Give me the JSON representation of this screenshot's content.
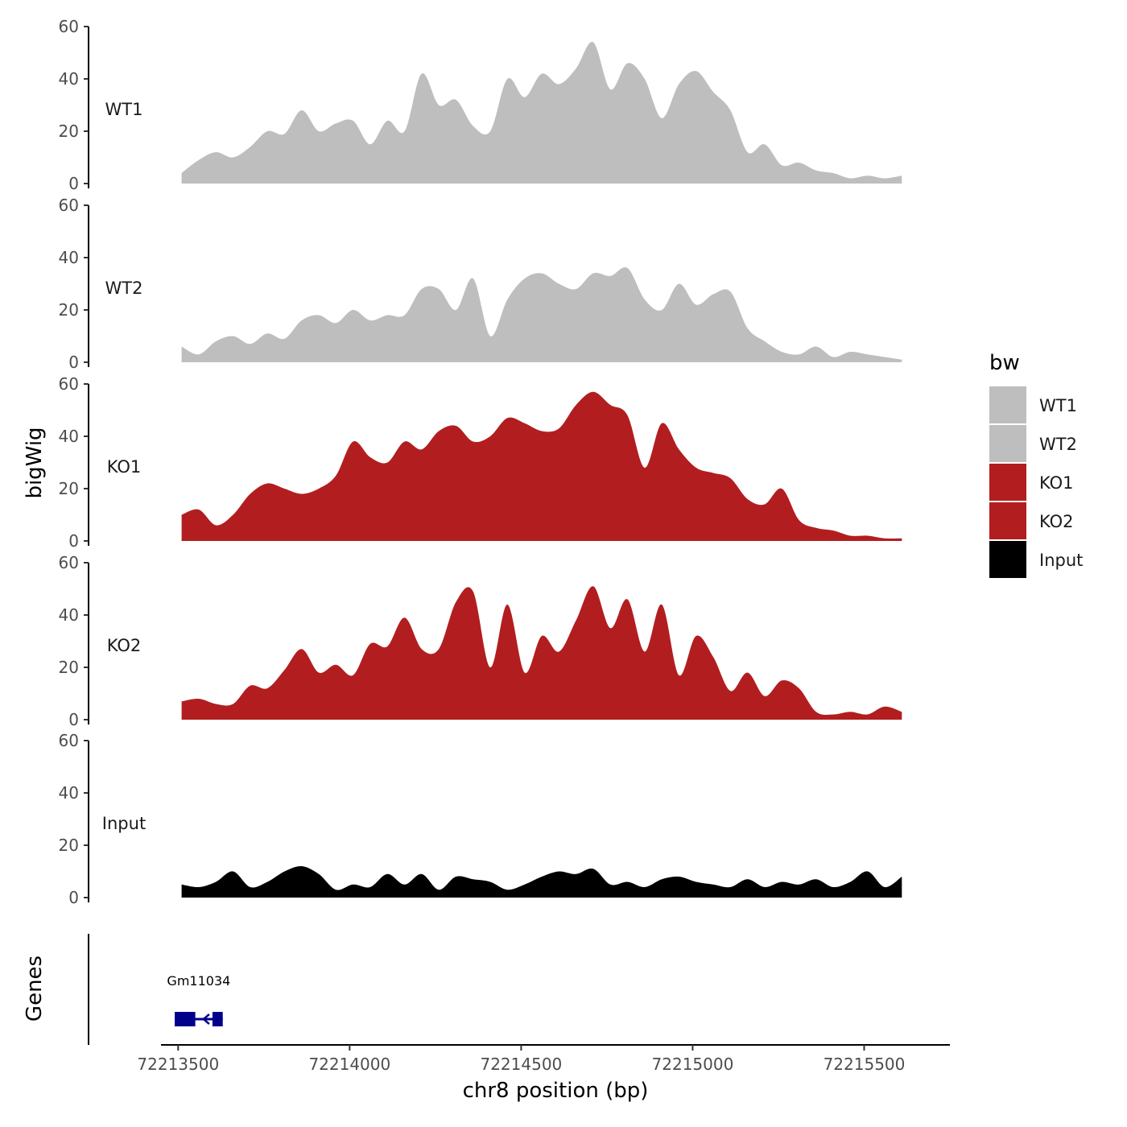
{
  "chart_data": {
    "type": "area",
    "ylabel": "bigWig",
    "xlabel": "chr8 position (bp)",
    "xlim": [
      72213450,
      72215750
    ],
    "x_ticks": [
      72213500,
      72214000,
      72214500,
      72215000,
      72215500
    ],
    "x_tick_labels": [
      "72213500",
      "72214000",
      "72214500",
      "72215000",
      "72215500"
    ],
    "ylim": [
      0,
      60
    ],
    "y_ticks": [
      0,
      20,
      40,
      60
    ],
    "y_tick_labels": [
      "0",
      "20",
      "40",
      "60"
    ],
    "series_x": [
      72213510,
      72213560,
      72213610,
      72213660,
      72213710,
      72213760,
      72213810,
      72213860,
      72213910,
      72213960,
      72214010,
      72214060,
      72214110,
      72214160,
      72214210,
      72214260,
      72214310,
      72214360,
      72214410,
      72214460,
      72214510,
      72214560,
      72214610,
      72214660,
      72214710,
      72214760,
      72214810,
      72214860,
      72214910,
      72214960,
      72215010,
      72215060,
      72215110,
      72215160,
      72215210,
      72215260,
      72215310,
      72215360,
      72215410,
      72215460,
      72215510,
      72215560,
      72215610
    ],
    "series": [
      {
        "name": "WT1",
        "color": "#bebebe",
        "values": [
          4,
          9,
          12,
          10,
          14,
          20,
          19,
          28,
          20,
          23,
          24,
          15,
          24,
          20,
          42,
          30,
          32,
          22,
          20,
          40,
          33,
          42,
          38,
          44,
          54,
          36,
          46,
          40,
          25,
          38,
          43,
          35,
          28,
          12,
          15,
          7,
          8,
          5,
          4,
          2,
          3,
          2,
          3
        ]
      },
      {
        "name": "WT2",
        "color": "#bebebe",
        "values": [
          6,
          3,
          8,
          10,
          7,
          11,
          9,
          16,
          18,
          15,
          20,
          16,
          18,
          18,
          28,
          28,
          20,
          32,
          10,
          24,
          32,
          34,
          30,
          28,
          34,
          33,
          36,
          24,
          20,
          30,
          22,
          26,
          27,
          13,
          8,
          4,
          3,
          6,
          2,
          4,
          3,
          2,
          1
        ]
      },
      {
        "name": "KO1",
        "color": "#b21e1f",
        "values": [
          10,
          12,
          6,
          10,
          18,
          22,
          20,
          18,
          20,
          25,
          38,
          32,
          30,
          38,
          35,
          42,
          44,
          38,
          40,
          47,
          45,
          42,
          43,
          52,
          57,
          52,
          48,
          28,
          45,
          35,
          28,
          26,
          24,
          16,
          14,
          20,
          8,
          5,
          4,
          2,
          2,
          1,
          1
        ]
      },
      {
        "name": "KO2",
        "color": "#b21e1f",
        "values": [
          7,
          8,
          6,
          6,
          13,
          12,
          19,
          27,
          18,
          21,
          17,
          29,
          28,
          39,
          27,
          27,
          45,
          49,
          20,
          44,
          18,
          32,
          26,
          38,
          51,
          35,
          46,
          26,
          44,
          17,
          32,
          24,
          11,
          18,
          9,
          15,
          12,
          3,
          2,
          3,
          2,
          5,
          3
        ]
      },
      {
        "name": "Input",
        "color": "#000000",
        "values": [
          5,
          4,
          6,
          10,
          4,
          6,
          10,
          12,
          9,
          3,
          5,
          4,
          9,
          5,
          9,
          3,
          8,
          7,
          6,
          3,
          5,
          8,
          10,
          9,
          11,
          5,
          6,
          4,
          7,
          8,
          6,
          5,
          4,
          7,
          4,
          6,
          5,
          7,
          4,
          6,
          10,
          4,
          8
        ]
      }
    ],
    "genes_track": {
      "label": "Genes",
      "genes": [
        {
          "name": "Gm11034",
          "start": 72213490,
          "end": 72213630,
          "strand": "-",
          "color": "#00008b",
          "exons": [
            [
              72213490,
              72213550
            ],
            [
              72213600,
              72213630
            ]
          ]
        }
      ]
    },
    "legend": {
      "title": "bw",
      "placement": "right",
      "entries": [
        "WT1",
        "WT2",
        "KO1",
        "KO2",
        "Input"
      ]
    }
  }
}
